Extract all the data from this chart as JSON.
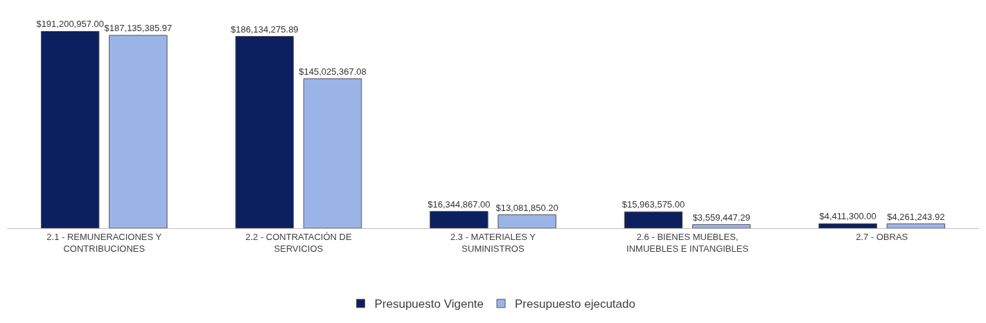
{
  "chart_data": {
    "type": "bar",
    "categories": [
      "2.1 - REMUNERACIONES Y CONTRIBUCIONES",
      "2.2 - CONTRATACIÓN DE SERVICIOS",
      "2.3 - MATERIALES Y SUMINISTROS",
      "2.6 - BIENES MUEBLES, INMUEBLES E INTANGIBLES",
      "2.7 - OBRAS"
    ],
    "series": [
      {
        "name": "Presupuesto Vigente",
        "color": "#0c1f5e",
        "values": [
          191200957.0,
          186134275.89,
          16344867.0,
          15963575.0,
          4411300.0
        ],
        "value_labels": [
          "$191,200,957.00",
          "$186,134,275.89",
          "$16,344,867.00",
          "$15,963,575.00",
          "$4,411,300.00"
        ]
      },
      {
        "name": "Presupuesto ejecutado",
        "color": "#9bb4e8",
        "values": [
          187135385.97,
          145025367.08,
          13081850.2,
          3559447.29,
          4261243.92
        ],
        "value_labels": [
          "$187,135,385.97",
          "$145,025,367.08",
          "$13,081,850.20",
          "$3,559,447.29",
          "$4,261,243.92"
        ]
      }
    ],
    "tick_labels": "x",
    "legend": "bottom"
  }
}
